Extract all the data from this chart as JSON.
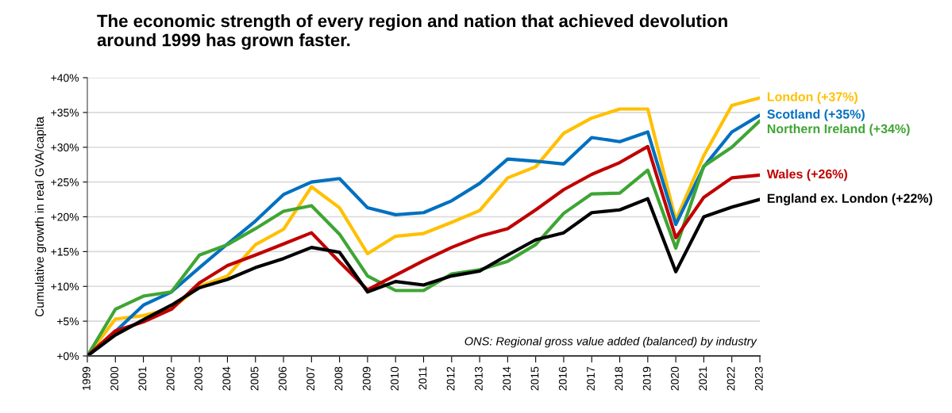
{
  "chart_data": {
    "type": "line",
    "title": "The economic strength of every region and nation that achieved devolution\naround 1999 has grown faster.",
    "ylabel": "Cumulative growth in real GVA/capita",
    "categories": [
      "1999",
      "2000",
      "2001",
      "2002",
      "2003",
      "2004",
      "2005",
      "2006",
      "2007",
      "2008",
      "2009",
      "2010",
      "2011",
      "2012",
      "2013",
      "2014",
      "2015",
      "2016",
      "2017",
      "2018",
      "2019",
      "2020",
      "2021",
      "2022",
      "2023"
    ],
    "series": [
      {
        "name": "London (+37%)",
        "color": "#ffc000",
        "values": [
          0,
          5.3,
          5.8,
          6.8,
          10,
          11.5,
          16,
          18.2,
          24.3,
          21.3,
          14.7,
          17.2,
          17.6,
          19.2,
          20.9,
          25.6,
          27.2,
          32,
          34.2,
          35.5,
          35.5,
          19.5,
          28.8,
          36,
          37.1
        ]
      },
      {
        "name": "Scotland (+35%)",
        "color": "#0070c0",
        "values": [
          0,
          3.5,
          7.3,
          9.2,
          12.7,
          16.1,
          19.4,
          23.2,
          25,
          25.5,
          21.3,
          20.3,
          20.6,
          22.3,
          24.8,
          28.3,
          28,
          27.6,
          31.4,
          30.8,
          32.2,
          18.9,
          27.2,
          32.2,
          34.6
        ]
      },
      {
        "name": "Northern Ireland (+34%)",
        "color": "#3fa535",
        "values": [
          0,
          6.7,
          8.6,
          9.2,
          14.5,
          16,
          18.3,
          20.8,
          21.6,
          17.5,
          11.5,
          9.4,
          9.4,
          11.8,
          12.4,
          13.6,
          16,
          20.5,
          23.3,
          23.4,
          26.7,
          15.5,
          27.3,
          30,
          33.8
        ]
      },
      {
        "name": "Wales (+26%)",
        "color": "#c00000",
        "values": [
          0,
          3.6,
          4.9,
          6.7,
          10.5,
          13,
          14.5,
          16.1,
          17.7,
          13.5,
          9.5,
          11.6,
          13.7,
          15.6,
          17.2,
          18.3,
          21,
          23.9,
          26.1,
          27.8,
          30.1,
          17,
          22.8,
          25.6,
          26
        ]
      },
      {
        "name": "England ex. London (+22%)",
        "color": "#000000",
        "values": [
          0,
          3,
          5.2,
          7.3,
          9.8,
          11,
          12.7,
          14,
          15.6,
          14.9,
          9.2,
          10.7,
          10.2,
          11.5,
          12.2,
          14.5,
          16.7,
          17.7,
          20.6,
          21,
          22.6,
          12.1,
          20,
          21.4,
          22.5
        ]
      }
    ],
    "ylim": [
      0,
      40
    ],
    "yticks": [
      {
        "value": 0,
        "label": "+0%"
      },
      {
        "value": 5,
        "label": "+5%"
      },
      {
        "value": 10,
        "label": "+10%"
      },
      {
        "value": 15,
        "label": "+15%"
      },
      {
        "value": 20,
        "label": "+20%"
      },
      {
        "value": 25,
        "label": "+25%"
      },
      {
        "value": 30,
        "label": "+30%"
      },
      {
        "value": 35,
        "label": "+35%"
      },
      {
        "value": 40,
        "label": "+40%"
      }
    ],
    "grid": "y",
    "annotations": [
      "ONS: Regional gross value added (balanced) by industry"
    ]
  }
}
